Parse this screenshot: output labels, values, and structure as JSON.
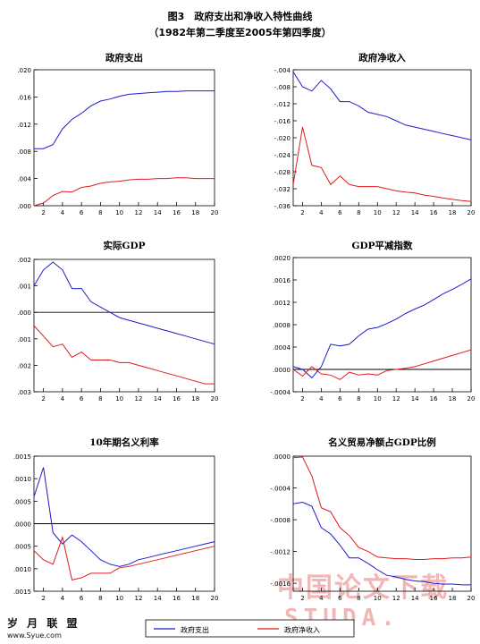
{
  "figure": {
    "title": "图3　政府支出和净收入特性曲线",
    "subtitle": "（1982年第二季度至2005年第四季度）"
  },
  "watermark": {
    "text": "中国论文下载",
    "url_text": "STUDA."
  },
  "logo": {
    "name": "岁 月 联 盟",
    "url": "www.Syue.com"
  },
  "legend": {
    "series1": "政府支出",
    "series2": "政府净收入",
    "color1": "#1c1ccc",
    "color2": "#e01c1c"
  },
  "chart_data": [
    {
      "type": "line",
      "title": "政府支出",
      "x": [
        1,
        2,
        3,
        4,
        5,
        6,
        7,
        8,
        9,
        10,
        11,
        12,
        13,
        14,
        15,
        16,
        17,
        18,
        19,
        20
      ],
      "ylim": [
        0.0,
        0.02
      ],
      "yticks": [
        0.0,
        0.004,
        0.008,
        0.012,
        0.016,
        0.02
      ],
      "yticklabels": [
        ".000",
        ".004",
        ".008",
        ".012",
        ".016",
        ".020"
      ],
      "xticks": [
        2,
        4,
        6,
        8,
        10,
        12,
        14,
        16,
        18,
        20
      ],
      "zero_line": false,
      "series": [
        {
          "name": "政府支出",
          "color": "#1c1ccc",
          "values": [
            0.0084,
            0.0084,
            0.009,
            0.0113,
            0.0127,
            0.0136,
            0.0147,
            0.0154,
            0.0157,
            0.0161,
            0.0164,
            0.0165,
            0.0166,
            0.0167,
            0.0168,
            0.0168,
            0.0169,
            0.0169,
            0.0169,
            0.0169
          ]
        },
        {
          "name": "政府净收入",
          "color": "#e01c1c",
          "values": [
            0.0,
            0.0004,
            0.0015,
            0.0021,
            0.002,
            0.0027,
            0.0029,
            0.0033,
            0.0035,
            0.0036,
            0.0038,
            0.0039,
            0.0039,
            0.004,
            0.004,
            0.0041,
            0.0041,
            0.004,
            0.004,
            0.004
          ]
        }
      ]
    },
    {
      "type": "line",
      "title": "政府净收入",
      "x": [
        1,
        2,
        3,
        4,
        5,
        6,
        7,
        8,
        9,
        10,
        11,
        12,
        13,
        14,
        15,
        16,
        17,
        18,
        19,
        20
      ],
      "ylim": [
        -0.036,
        -0.004
      ],
      "yticks": [
        -0.036,
        -0.032,
        -0.028,
        -0.024,
        -0.02,
        -0.016,
        -0.012,
        -0.008,
        -0.004
      ],
      "yticklabels": [
        "-.036",
        "-.032",
        "-.028",
        "-.024",
        "-.020",
        "-.016",
        "-.012",
        "-.008",
        "-.004"
      ],
      "xticks": [
        2,
        4,
        6,
        8,
        10,
        12,
        14,
        16,
        18,
        20
      ],
      "zero_line": false,
      "series": [
        {
          "name": "政府支出",
          "color": "#1c1ccc",
          "values": [
            -0.0045,
            -0.008,
            -0.009,
            -0.0065,
            -0.0085,
            -0.0115,
            -0.0115,
            -0.0125,
            -0.014,
            -0.0145,
            -0.015,
            -0.016,
            -0.017,
            -0.0175,
            -0.018,
            -0.0185,
            -0.019,
            -0.0195,
            -0.02,
            -0.0205
          ]
        },
        {
          "name": "政府净收入",
          "color": "#e01c1c",
          "values": [
            -0.031,
            -0.0175,
            -0.0265,
            -0.027,
            -0.031,
            -0.029,
            -0.031,
            -0.0315,
            -0.0315,
            -0.0315,
            -0.032,
            -0.0325,
            -0.0328,
            -0.033,
            -0.0335,
            -0.0338,
            -0.0342,
            -0.0345,
            -0.0348,
            -0.035
          ]
        }
      ]
    },
    {
      "type": "line",
      "title": "实际GDP",
      "x": [
        1,
        2,
        3,
        4,
        5,
        6,
        7,
        8,
        9,
        10,
        11,
        12,
        13,
        14,
        15,
        16,
        17,
        18,
        19,
        20
      ],
      "ylim": [
        -0.003,
        0.002
      ],
      "yticks": [
        -0.003,
        -0.002,
        -0.001,
        0.0,
        0.001,
        0.002
      ],
      "yticklabels": [
        ".003",
        ".002",
        ".001",
        ".000",
        ".001",
        ".002"
      ],
      "xticks": [
        2,
        4,
        6,
        8,
        10,
        12,
        14,
        16,
        18,
        20
      ],
      "zero_line": true,
      "series": [
        {
          "name": "政府支出",
          "color": "#1c1ccc",
          "values": [
            0.001,
            0.0016,
            0.0019,
            0.0016,
            0.0009,
            0.0009,
            0.0004,
            0.0002,
            0.0,
            -0.0002,
            -0.0003,
            -0.0004,
            -0.0005,
            -0.0006,
            -0.0007,
            -0.0008,
            -0.0009,
            -0.001,
            -0.0011,
            -0.0012
          ]
        },
        {
          "name": "政府净收入",
          "color": "#e01c1c",
          "values": [
            -0.0005,
            -0.0009,
            -0.0013,
            -0.0012,
            -0.0017,
            -0.0015,
            -0.0018,
            -0.0018,
            -0.0018,
            -0.0019,
            -0.0019,
            -0.002,
            -0.0021,
            -0.0022,
            -0.0023,
            -0.0024,
            -0.0025,
            -0.0026,
            -0.0027,
            -0.0027
          ]
        }
      ]
    },
    {
      "type": "line",
      "title": "GDP平减指数",
      "x": [
        1,
        2,
        3,
        4,
        5,
        6,
        7,
        8,
        9,
        10,
        11,
        12,
        13,
        14,
        15,
        16,
        17,
        18,
        19,
        20
      ],
      "ylim": [
        -0.0004,
        0.002
      ],
      "yticks": [
        -0.0004,
        0.0,
        0.0004,
        0.0008,
        0.0012,
        0.0016,
        0.002
      ],
      "yticklabels": [
        "-.0004",
        ".0000",
        ".0004",
        ".0008",
        ".0012",
        ".0016",
        ".0020"
      ],
      "xticks": [
        2,
        4,
        6,
        8,
        10,
        12,
        14,
        16,
        18,
        20
      ],
      "zero_line": true,
      "series": [
        {
          "name": "政府支出",
          "color": "#1c1ccc",
          "values": [
            5e-05,
            0.0,
            -0.00015,
            5e-05,
            0.00045,
            0.00042,
            0.00045,
            0.0006,
            0.00072,
            0.00075,
            0.00082,
            0.0009,
            0.001,
            0.00108,
            0.00115,
            0.00125,
            0.00135,
            0.00143,
            0.00152,
            0.00162
          ]
        },
        {
          "name": "政府净收入",
          "color": "#e01c1c",
          "values": [
            0.0,
            -0.00012,
            5e-05,
            -8e-05,
            -0.0001,
            -0.00018,
            -5e-05,
            -0.0001,
            -8e-05,
            -0.0001,
            -2e-05,
            0.0,
            2e-05,
            5e-05,
            0.0001,
            0.00015,
            0.0002,
            0.00025,
            0.0003,
            0.00035
          ]
        }
      ]
    },
    {
      "type": "line",
      "title": "10年期名义利率",
      "x": [
        1,
        2,
        3,
        4,
        5,
        6,
        7,
        8,
        9,
        10,
        11,
        12,
        13,
        14,
        15,
        16,
        17,
        18,
        19,
        20
      ],
      "ylim": [
        -0.0015,
        0.0015
      ],
      "yticks": [
        -0.0015,
        -0.001,
        -0.0005,
        0.0,
        0.0005,
        0.001,
        0.0015
      ],
      "yticklabels": [
        ".0015",
        ".0010",
        ".0005",
        ".0000",
        ".0005",
        ".0010",
        ".0015"
      ],
      "xticks": [
        2,
        4,
        6,
        8,
        10,
        12,
        14,
        16,
        18,
        20
      ],
      "zero_line": true,
      "series": [
        {
          "name": "政府支出",
          "color": "#1c1ccc",
          "values": [
            0.0006,
            0.00125,
            -0.0002,
            -0.00045,
            -0.00025,
            -0.0004,
            -0.0006,
            -0.0008,
            -0.0009,
            -0.00095,
            -0.0009,
            -0.0008,
            -0.00075,
            -0.0007,
            -0.00065,
            -0.0006,
            -0.00055,
            -0.0005,
            -0.00045,
            -0.0004
          ]
        },
        {
          "name": "政府净收入",
          "color": "#e01c1c",
          "values": [
            -0.0006,
            -0.0008,
            -0.0009,
            -0.0003,
            -0.00125,
            -0.0012,
            -0.0011,
            -0.0011,
            -0.0011,
            -0.00098,
            -0.00095,
            -0.0009,
            -0.00085,
            -0.0008,
            -0.00075,
            -0.0007,
            -0.00065,
            -0.0006,
            -0.00055,
            -0.0005
          ]
        }
      ]
    },
    {
      "type": "line",
      "title": "名义贸易净额占GDP比例",
      "x": [
        1,
        2,
        3,
        4,
        5,
        6,
        7,
        8,
        9,
        10,
        11,
        12,
        13,
        14,
        15,
        16,
        17,
        18,
        19,
        20
      ],
      "ylim": [
        -0.0017,
        0.0
      ],
      "yticks": [
        -0.0016,
        -0.0012,
        -0.0008,
        -0.0004,
        0.0
      ],
      "yticklabels": [
        "-.0016",
        "-.0012",
        "-.0008",
        "-.0004",
        ".0000"
      ],
      "xticks": [
        2,
        4,
        6,
        8,
        10,
        12,
        14,
        16,
        18,
        20
      ],
      "zero_line": false,
      "series": [
        {
          "name": "政府支出",
          "color": "#1c1ccc",
          "values": [
            -0.0006,
            -0.00058,
            -0.00063,
            -0.0009,
            -0.00098,
            -0.00112,
            -0.00128,
            -0.00128,
            -0.00135,
            -0.00143,
            -0.0015,
            -0.00152,
            -0.00155,
            -0.00157,
            -0.00158,
            -0.0016,
            -0.00161,
            -0.00161,
            -0.00162,
            -0.00162
          ]
        },
        {
          "name": "政府净收入",
          "color": "#e01c1c",
          "values": [
            -2e-05,
            -1e-05,
            -0.00025,
            -0.00065,
            -0.0007,
            -0.0009,
            -0.001,
            -0.00115,
            -0.0012,
            -0.00127,
            -0.00128,
            -0.00129,
            -0.00129,
            -0.0013,
            -0.0013,
            -0.00129,
            -0.00129,
            -0.00128,
            -0.00128,
            -0.00127
          ]
        }
      ]
    }
  ]
}
